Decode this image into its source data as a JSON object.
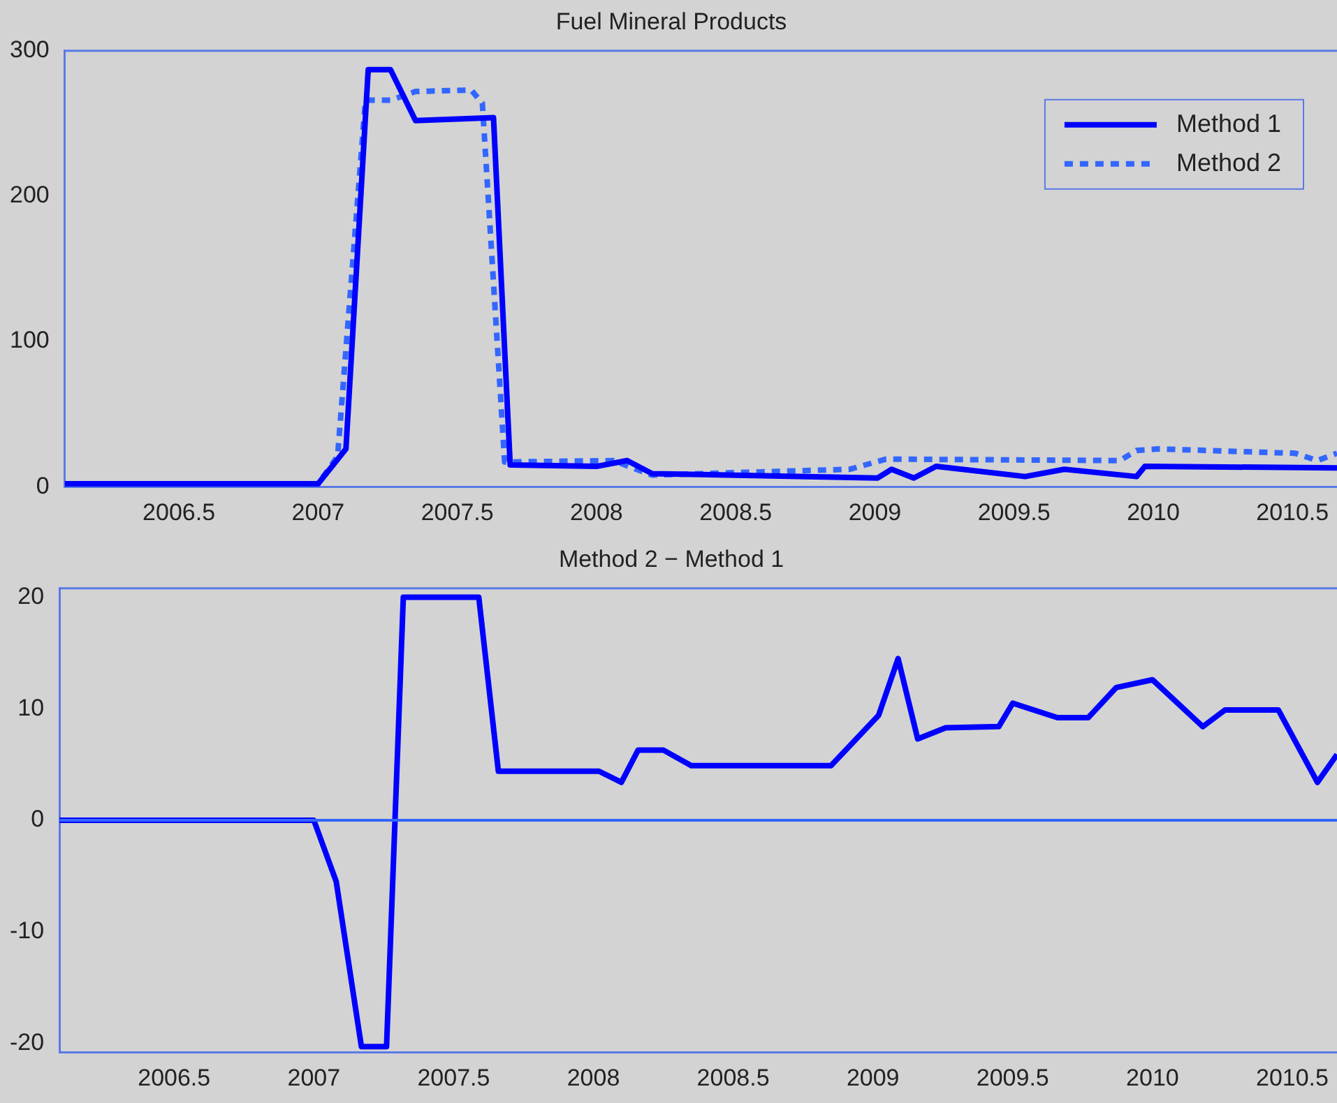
{
  "chart_data": [
    {
      "type": "line",
      "title": "Fuel Mineral Products",
      "xlim": [
        2006.09,
        2010.66
      ],
      "xticks": [
        2006.5,
        2007,
        2007.5,
        2008,
        2008.5,
        2009,
        2009.5,
        2010,
        2010.5
      ],
      "ylim": [
        0,
        300
      ],
      "yticks": [
        0,
        100,
        200,
        300
      ],
      "legend": "top right",
      "series": [
        {
          "name": "Method 1",
          "color": "#0000ff",
          "line_style": "solid",
          "x": [
            2006.09,
            2007.0,
            2007.1,
            2007.18,
            2007.26,
            2007.35,
            2007.63,
            2007.69,
            2008.0,
            2008.11,
            2008.2,
            2009.01,
            2009.06,
            2009.14,
            2009.22,
            2009.54,
            2009.68,
            2009.94,
            2009.97,
            2010.66
          ],
          "values": [
            2,
            2,
            26,
            287,
            287,
            252,
            254,
            15,
            14,
            18,
            9,
            6,
            12,
            6,
            14,
            7,
            12,
            7,
            14,
            13
          ]
        },
        {
          "name": "Method 2",
          "color": "#3366ff",
          "line_style": "dotted",
          "x": [
            2006.09,
            2007.0,
            2007.07,
            2007.17,
            2007.26,
            2007.35,
            2007.55,
            2007.59,
            2007.67,
            2008.06,
            2008.2,
            2008.91,
            2009.04,
            2009.88,
            2009.94,
            2010.02,
            2010.51,
            2010.59,
            2010.66
          ],
          "values": [
            2,
            2,
            21,
            266,
            266,
            272,
            273,
            264,
            17,
            18,
            8,
            12,
            19,
            18,
            25,
            26,
            23,
            18,
            23
          ]
        }
      ]
    },
    {
      "type": "line",
      "title": "Method 2 − Method 1",
      "xlim": [
        2006.09,
        2010.66
      ],
      "xticks": [
        2006.5,
        2007,
        2007.5,
        2008,
        2008.5,
        2009,
        2009.5,
        2010,
        2010.5
      ],
      "ylim": [
        -20.8,
        20.8
      ],
      "yticks": [
        -20,
        -10,
        0,
        10,
        20
      ],
      "ref_lines": [
        {
          "axis": "y",
          "value": 0,
          "color": "#3366ff"
        }
      ],
      "series": [
        {
          "color": "#0000ff",
          "line_style": "solid",
          "x": [
            2006.09,
            2007.0,
            2007.08,
            2007.17,
            2007.26,
            2007.32,
            2007.59,
            2007.66,
            2008.02,
            2008.1,
            2008.16,
            2008.25,
            2008.35,
            2008.85,
            2009.02,
            2009.09,
            2009.16,
            2009.26,
            2009.45,
            2009.5,
            2009.66,
            2009.77,
            2009.87,
            2010.0,
            2010.18,
            2010.26,
            2010.45,
            2010.59,
            2010.66
          ],
          "values": [
            0,
            0,
            -5.5,
            -20.3,
            -20.3,
            20,
            20,
            4.4,
            4.4,
            3.4,
            6.3,
            6.3,
            4.9,
            4.9,
            9.4,
            14.5,
            7.3,
            8.3,
            8.4,
            10.5,
            9.2,
            9.2,
            11.9,
            12.6,
            8.4,
            9.9,
            9.9,
            3.4,
            5.9
          ]
        }
      ]
    }
  ]
}
